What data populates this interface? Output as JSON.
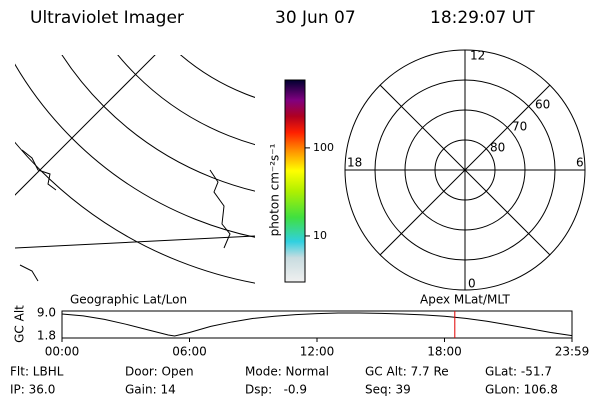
{
  "header": {
    "title": "Ultraviolet Imager",
    "date": "30 Jun 07",
    "time": "18:29:07 UT"
  },
  "colorbar": {
    "label": "photon cm⁻²s⁻¹",
    "log": true,
    "ylim": [
      3,
      590
    ],
    "yticks": [
      10,
      100
    ]
  },
  "polar": {
    "mlt_labels": [
      "12",
      "6",
      "0",
      "18"
    ],
    "lat_labels": [
      "80",
      "70",
      "60"
    ]
  },
  "altitude": {
    "type": "line",
    "ylabel": "GC Alt",
    "left_title": "Geographic Lat/Lon",
    "right_title": "Apex MLat/MLT",
    "x": [
      0,
      1,
      2,
      3,
      4,
      5,
      5.3,
      6,
      7,
      8,
      9,
      10,
      11,
      12,
      13,
      14,
      15,
      16,
      17,
      18,
      19,
      20,
      21,
      22,
      23,
      24
    ],
    "values": [
      8.7,
      8.1,
      7.0,
      5.5,
      3.8,
      2.1,
      1.8,
      2.9,
      4.8,
      6.2,
      7.3,
      8.0,
      8.5,
      8.8,
      9.0,
      9.0,
      8.9,
      8.7,
      8.4,
      8.0,
      7.3,
      6.4,
      5.3,
      4.1,
      2.9,
      1.9
    ],
    "color": "#000000",
    "marker": 18.485,
    "marker_color": "#e00000",
    "xlim": [
      0,
      24
    ],
    "ylim": [
      1.8,
      9.0
    ],
    "xticks": [
      {
        "value": 0,
        "label": "00:00"
      },
      {
        "value": 6,
        "label": "06:00"
      },
      {
        "value": 12,
        "label": "12:00"
      },
      {
        "value": 18,
        "label": "18:00"
      },
      {
        "value": 24,
        "label": "23:59"
      }
    ],
    "yticks": [
      {
        "value": 9.0,
        "label": "9.0"
      },
      {
        "value": 1.8,
        "label": "1.8"
      }
    ]
  },
  "info": [
    [
      "Flt: LBHL",
      "Door: Open",
      "Mode: Normal",
      "GC Alt: 7.7 Re",
      "GLat: -51.7"
    ],
    [
      "IP: 36.0",
      "Gain: 14",
      "Dsp:   -0.9",
      "Seq: 39",
      "GLon: 106.8"
    ]
  ]
}
